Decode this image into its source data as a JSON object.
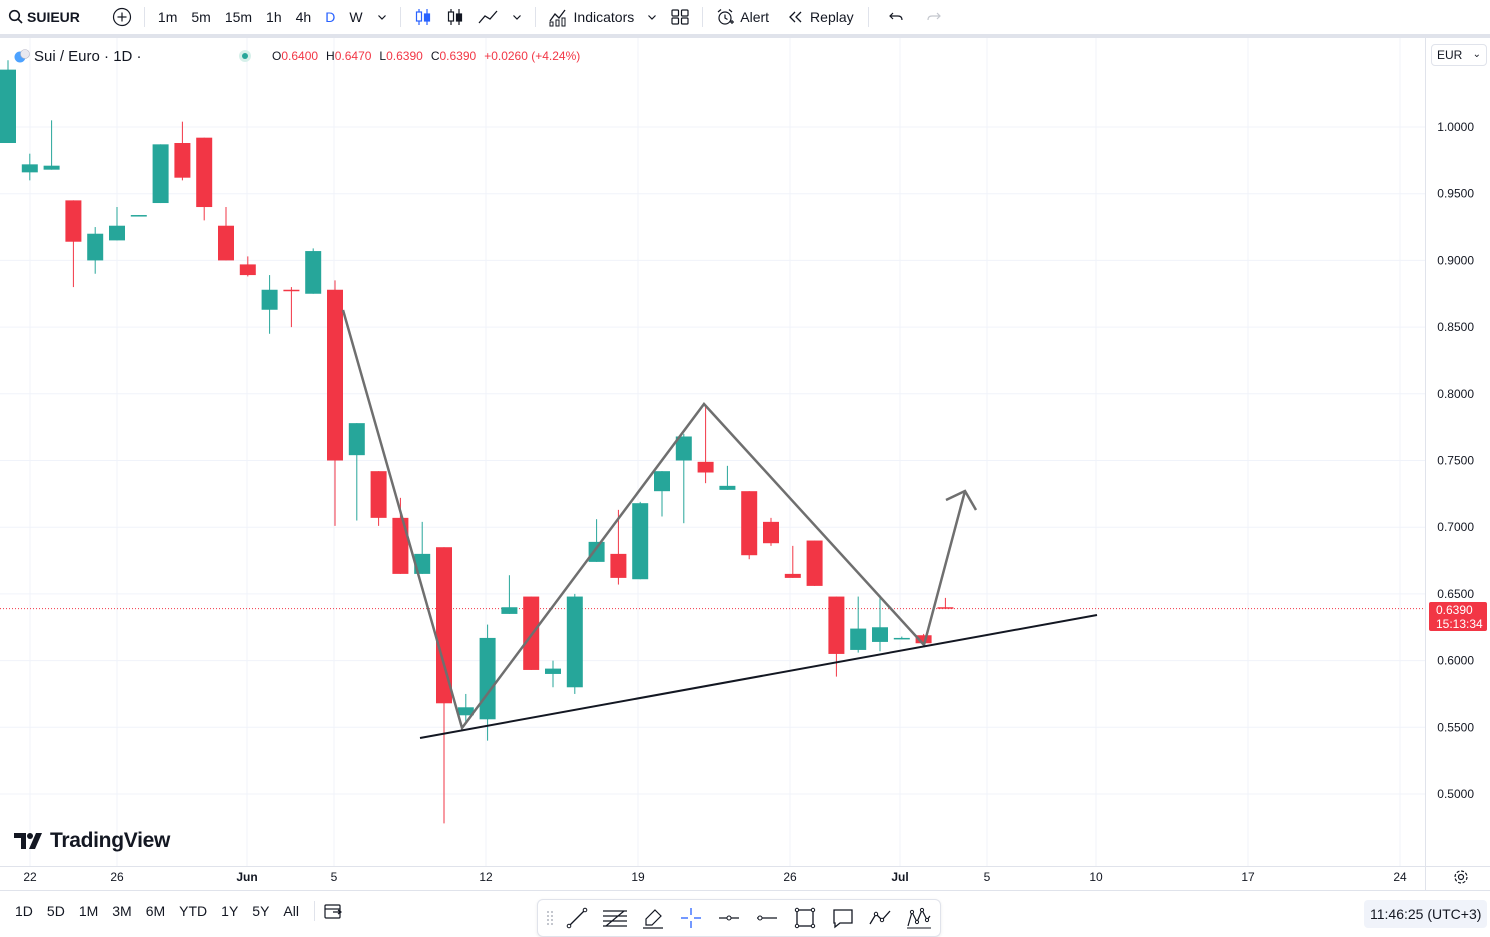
{
  "toolbar": {
    "symbol": "SUIEUR",
    "timeframes": [
      "1m",
      "5m",
      "15m",
      "1h",
      "4h",
      "D",
      "W"
    ],
    "active_timeframe": "D",
    "indicators_label": "Indicators",
    "alert_label": "Alert",
    "replay_label": "Replay"
  },
  "legend": {
    "title": "Sui / Euro · 1D ·",
    "open_label": "O",
    "open": "0.6400",
    "high_label": "H",
    "high": "0.6470",
    "low_label": "L",
    "low": "0.6390",
    "close_label": "C",
    "close": "0.6390",
    "change": "+0.0260 (+4.24%)"
  },
  "currency": "EUR",
  "price_tag": {
    "price": "0.6390",
    "countdown": "15:13:34"
  },
  "logo_text": "TradingView",
  "bottom": {
    "ranges": [
      "1D",
      "5D",
      "1M",
      "3M",
      "6M",
      "YTD",
      "1Y",
      "5Y",
      "All"
    ],
    "clock": "11:46:25 (UTC+3)"
  },
  "colors": {
    "up": "#26a69a",
    "down": "#f23645",
    "accent": "#2962ff",
    "drawing": "#6f6f6f"
  },
  "chart_data": {
    "type": "candlestick",
    "y_ticks": [
      "1.0000",
      "0.9500",
      "0.9000",
      "0.8500",
      "0.8000",
      "0.7500",
      "0.7000",
      "0.6500",
      "0.6000",
      "0.5500",
      "0.5000"
    ],
    "x_ticks": [
      "22",
      "26",
      "Jun",
      "5",
      "12",
      "19",
      "26",
      "Jul",
      "5",
      "10",
      "17",
      "24"
    ],
    "ylim": [
      0.455,
      1.065
    ],
    "current_price": 0.639,
    "candles": [
      {
        "o": 0.988,
        "h": 1.05,
        "l": 0.988,
        "c": 1.043
      },
      {
        "o": 0.966,
        "h": 0.98,
        "l": 0.96,
        "c": 0.972
      },
      {
        "o": 0.968,
        "h": 1.005,
        "l": 0.968,
        "c": 0.971
      },
      {
        "o": 0.945,
        "h": 0.945,
        "l": 0.88,
        "c": 0.914
      },
      {
        "o": 0.9,
        "h": 0.925,
        "l": 0.89,
        "c": 0.92
      },
      {
        "o": 0.915,
        "h": 0.94,
        "l": 0.915,
        "c": 0.926
      },
      {
        "o": 0.933,
        "h": 0.934,
        "l": 0.933,
        "c": 0.934
      },
      {
        "o": 0.943,
        "h": 0.987,
        "l": 0.943,
        "c": 0.987
      },
      {
        "o": 0.988,
        "h": 1.004,
        "l": 0.96,
        "c": 0.962
      },
      {
        "o": 0.992,
        "h": 0.992,
        "l": 0.93,
        "c": 0.94
      },
      {
        "o": 0.926,
        "h": 0.94,
        "l": 0.9,
        "c": 0.9
      },
      {
        "o": 0.897,
        "h": 0.903,
        "l": 0.888,
        "c": 0.889
      },
      {
        "o": 0.863,
        "h": 0.889,
        "l": 0.845,
        "c": 0.878
      },
      {
        "o": 0.878,
        "h": 0.88,
        "l": 0.85,
        "c": 0.877
      },
      {
        "o": 0.875,
        "h": 0.909,
        "l": 0.875,
        "c": 0.907
      },
      {
        "o": 0.878,
        "h": 0.885,
        "l": 0.701,
        "c": 0.75
      },
      {
        "o": 0.754,
        "h": 0.778,
        "l": 0.705,
        "c": 0.778
      },
      {
        "o": 0.742,
        "h": 0.742,
        "l": 0.701,
        "c": 0.707
      },
      {
        "o": 0.707,
        "h": 0.722,
        "l": 0.665,
        "c": 0.665
      },
      {
        "o": 0.665,
        "h": 0.704,
        "l": 0.665,
        "c": 0.68
      },
      {
        "o": 0.685,
        "h": 0.685,
        "l": 0.478,
        "c": 0.568
      },
      {
        "o": 0.559,
        "h": 0.575,
        "l": 0.553,
        "c": 0.565
      },
      {
        "o": 0.556,
        "h": 0.627,
        "l": 0.54,
        "c": 0.617
      },
      {
        "o": 0.635,
        "h": 0.664,
        "l": 0.635,
        "c": 0.64
      },
      {
        "o": 0.648,
        "h": 0.648,
        "l": 0.593,
        "c": 0.593
      },
      {
        "o": 0.59,
        "h": 0.6,
        "l": 0.58,
        "c": 0.594
      },
      {
        "o": 0.58,
        "h": 0.65,
        "l": 0.575,
        "c": 0.648
      },
      {
        "o": 0.674,
        "h": 0.706,
        "l": 0.674,
        "c": 0.689
      },
      {
        "o": 0.68,
        "h": 0.713,
        "l": 0.657,
        "c": 0.662
      },
      {
        "o": 0.661,
        "h": 0.719,
        "l": 0.661,
        "c": 0.718
      },
      {
        "o": 0.727,
        "h": 0.742,
        "l": 0.708,
        "c": 0.742
      },
      {
        "o": 0.75,
        "h": 0.77,
        "l": 0.703,
        "c": 0.768
      },
      {
        "o": 0.749,
        "h": 0.792,
        "l": 0.733,
        "c": 0.741
      },
      {
        "o": 0.728,
        "h": 0.746,
        "l": 0.728,
        "c": 0.731
      },
      {
        "o": 0.727,
        "h": 0.727,
        "l": 0.676,
        "c": 0.679
      },
      {
        "o": 0.704,
        "h": 0.707,
        "l": 0.686,
        "c": 0.688
      },
      {
        "o": 0.665,
        "h": 0.686,
        "l": 0.662,
        "c": 0.662
      },
      {
        "o": 0.69,
        "h": 0.69,
        "l": 0.656,
        "c": 0.656
      },
      {
        "o": 0.648,
        "h": 0.648,
        "l": 0.588,
        "c": 0.605
      },
      {
        "o": 0.608,
        "h": 0.648,
        "l": 0.606,
        "c": 0.624
      },
      {
        "o": 0.614,
        "h": 0.649,
        "l": 0.607,
        "c": 0.625
      },
      {
        "o": 0.617,
        "h": 0.618,
        "l": 0.616,
        "c": 0.617
      },
      {
        "o": 0.619,
        "h": 0.62,
        "l": 0.611,
        "c": 0.613
      },
      {
        "o": 0.64,
        "h": 0.647,
        "l": 0.639,
        "c": 0.639
      }
    ]
  }
}
